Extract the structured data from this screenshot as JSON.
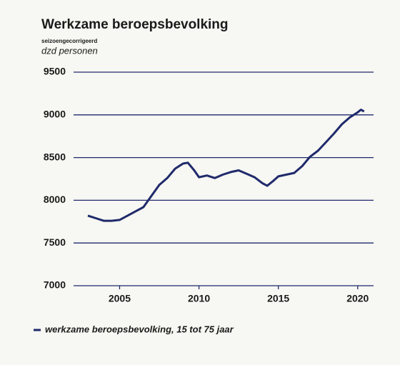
{
  "chart_data": {
    "type": "line",
    "title": "Werkzame beroepsbevolking",
    "subtitle": "seizoengecorrigeerd",
    "y_label": "dzd personen",
    "x": [
      2003,
      2003.5,
      2004,
      2004.5,
      2005,
      2005.5,
      2006,
      2006.5,
      2007,
      2007.5,
      2008,
      2008.5,
      2009,
      2009.3,
      2009.7,
      2010,
      2010.5,
      2011,
      2011.5,
      2012,
      2012.5,
      2013,
      2013.5,
      2014,
      2014.3,
      2014.7,
      2015,
      2015.5,
      2016,
      2016.5,
      2017,
      2017.5,
      2018,
      2018.5,
      2019,
      2019.5,
      2020,
      2020.2,
      2020.4
    ],
    "series": [
      {
        "name": "werkzame beroepsbevolking, 15 tot 75 jaar",
        "color": "#1f2a6b",
        "values": [
          7820,
          7790,
          7760,
          7760,
          7770,
          7820,
          7870,
          7920,
          8050,
          8180,
          8260,
          8370,
          8430,
          8440,
          8350,
          8270,
          8290,
          8260,
          8300,
          8330,
          8350,
          8310,
          8270,
          8200,
          8170,
          8230,
          8280,
          8300,
          8320,
          8400,
          8510,
          8580,
          8680,
          8780,
          8890,
          8970,
          9030,
          9060,
          9040
        ]
      }
    ],
    "xlim": [
      2002.1,
      2021
    ],
    "xticks": [
      2005,
      2010,
      2015,
      2020
    ],
    "ylim": [
      7000,
      9500
    ],
    "yticks": [
      7000,
      7500,
      8000,
      8500,
      9000,
      9500
    ],
    "grid": true,
    "legend": "bottom-left"
  }
}
